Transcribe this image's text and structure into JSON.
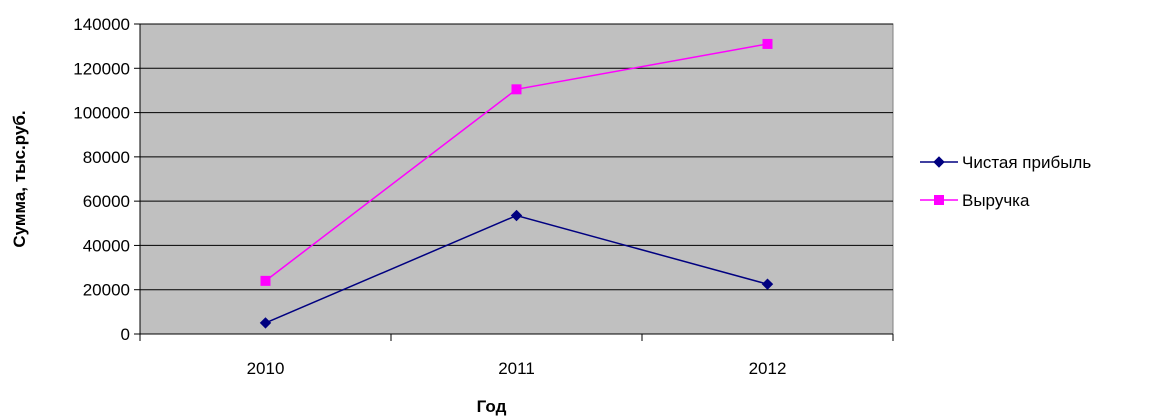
{
  "chart_data": {
    "type": "line",
    "title": "",
    "xlabel": "Год",
    "ylabel": "Сумма, тыс.руб.",
    "categories": [
      "2010",
      "2011",
      "2012"
    ],
    "ylim": [
      0,
      140000
    ],
    "yticks": [
      0,
      20000,
      40000,
      60000,
      80000,
      100000,
      120000,
      140000
    ],
    "grid": true,
    "legend_position": "right",
    "plot_background": "#c0c0c0",
    "series": [
      {
        "name": "Чистая прибыль",
        "values": [
          5000,
          53500,
          22500
        ],
        "color": "#000080",
        "marker": "diamond"
      },
      {
        "name": "Выручка",
        "values": [
          24000,
          110500,
          131000
        ],
        "color": "#ff00ff",
        "marker": "square"
      }
    ]
  }
}
